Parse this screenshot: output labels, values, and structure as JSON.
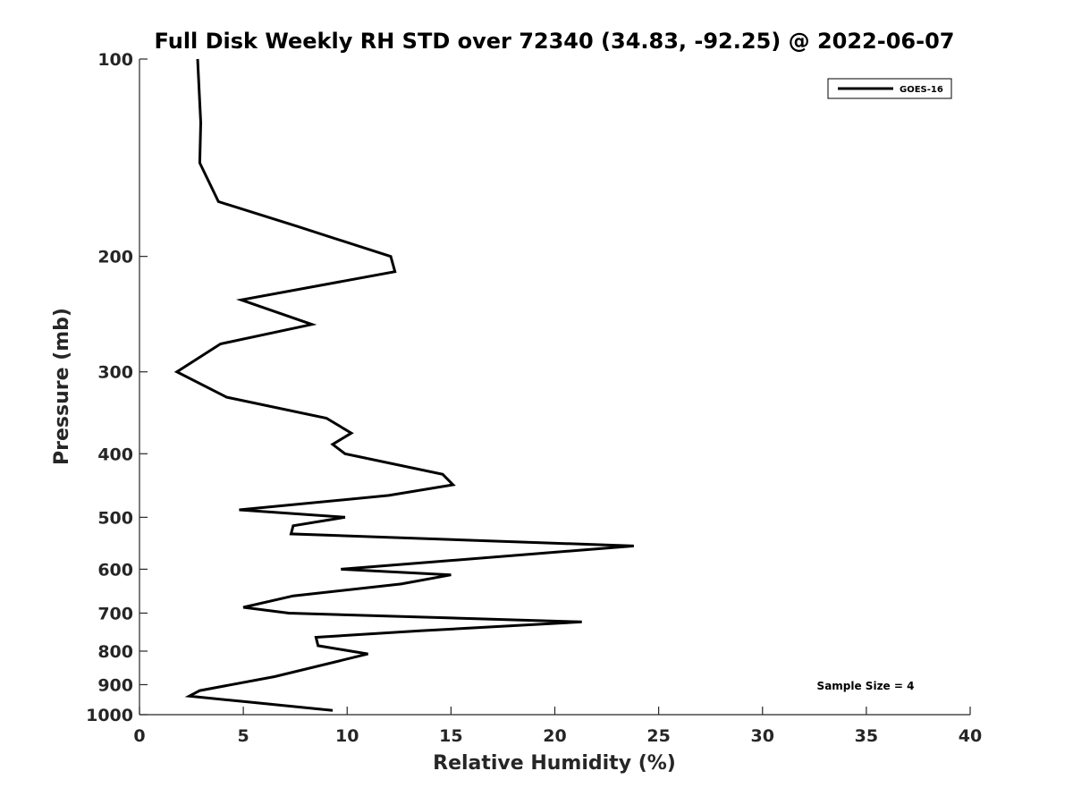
{
  "chart_data": {
    "type": "line",
    "title": "Full Disk Weekly RH STD over 72340 (34.83, -92.25) @ 2022-06-07",
    "xlabel": "Relative Humidity (%)",
    "ylabel": "Pressure (mb)",
    "xlim": [
      0,
      40
    ],
    "ylim": [
      100,
      1000
    ],
    "y_scale": "log",
    "y_reversed": true,
    "grid": false,
    "legend_position": "top-right",
    "x_ticks": [
      "0",
      "5",
      "10",
      "15",
      "20",
      "25",
      "30",
      "35",
      "40"
    ],
    "y_ticks": [
      "100",
      "200",
      "300",
      "400",
      "500",
      "600",
      "700",
      "800",
      "900",
      "1000"
    ],
    "series": [
      {
        "name": "GOES-16",
        "color": "#000000",
        "points": [
          {
            "x": 2.8,
            "y": 100
          },
          {
            "x": 2.95,
            "y": 125
          },
          {
            "x": 2.9,
            "y": 144
          },
          {
            "x": 3.8,
            "y": 165
          },
          {
            "x": 7.6,
            "y": 180
          },
          {
            "x": 12.1,
            "y": 200
          },
          {
            "x": 12.3,
            "y": 211
          },
          {
            "x": 4.9,
            "y": 233
          },
          {
            "x": 8.3,
            "y": 254
          },
          {
            "x": 3.9,
            "y": 272
          },
          {
            "x": 1.8,
            "y": 300
          },
          {
            "x": 4.2,
            "y": 328
          },
          {
            "x": 9.0,
            "y": 353
          },
          {
            "x": 10.2,
            "y": 372
          },
          {
            "x": 9.3,
            "y": 387
          },
          {
            "x": 9.9,
            "y": 400
          },
          {
            "x": 14.6,
            "y": 430
          },
          {
            "x": 15.1,
            "y": 446
          },
          {
            "x": 12.0,
            "y": 463
          },
          {
            "x": 4.8,
            "y": 487
          },
          {
            "x": 9.9,
            "y": 500
          },
          {
            "x": 7.4,
            "y": 515
          },
          {
            "x": 7.3,
            "y": 530
          },
          {
            "x": 23.8,
            "y": 553
          },
          {
            "x": 9.7,
            "y": 600
          },
          {
            "x": 15.0,
            "y": 612
          },
          {
            "x": 12.6,
            "y": 632
          },
          {
            "x": 7.4,
            "y": 659
          },
          {
            "x": 5.0,
            "y": 686
          },
          {
            "x": 7.2,
            "y": 700
          },
          {
            "x": 21.3,
            "y": 722
          },
          {
            "x": 13.5,
            "y": 745
          },
          {
            "x": 8.5,
            "y": 762
          },
          {
            "x": 8.6,
            "y": 785
          },
          {
            "x": 11.0,
            "y": 808
          },
          {
            "x": 6.5,
            "y": 875
          },
          {
            "x": 2.9,
            "y": 919
          },
          {
            "x": 2.4,
            "y": 937
          },
          {
            "x": 5.0,
            "y": 955
          },
          {
            "x": 9.3,
            "y": 985
          }
        ]
      }
    ],
    "annotations": [
      "Sample Size = 4"
    ]
  }
}
